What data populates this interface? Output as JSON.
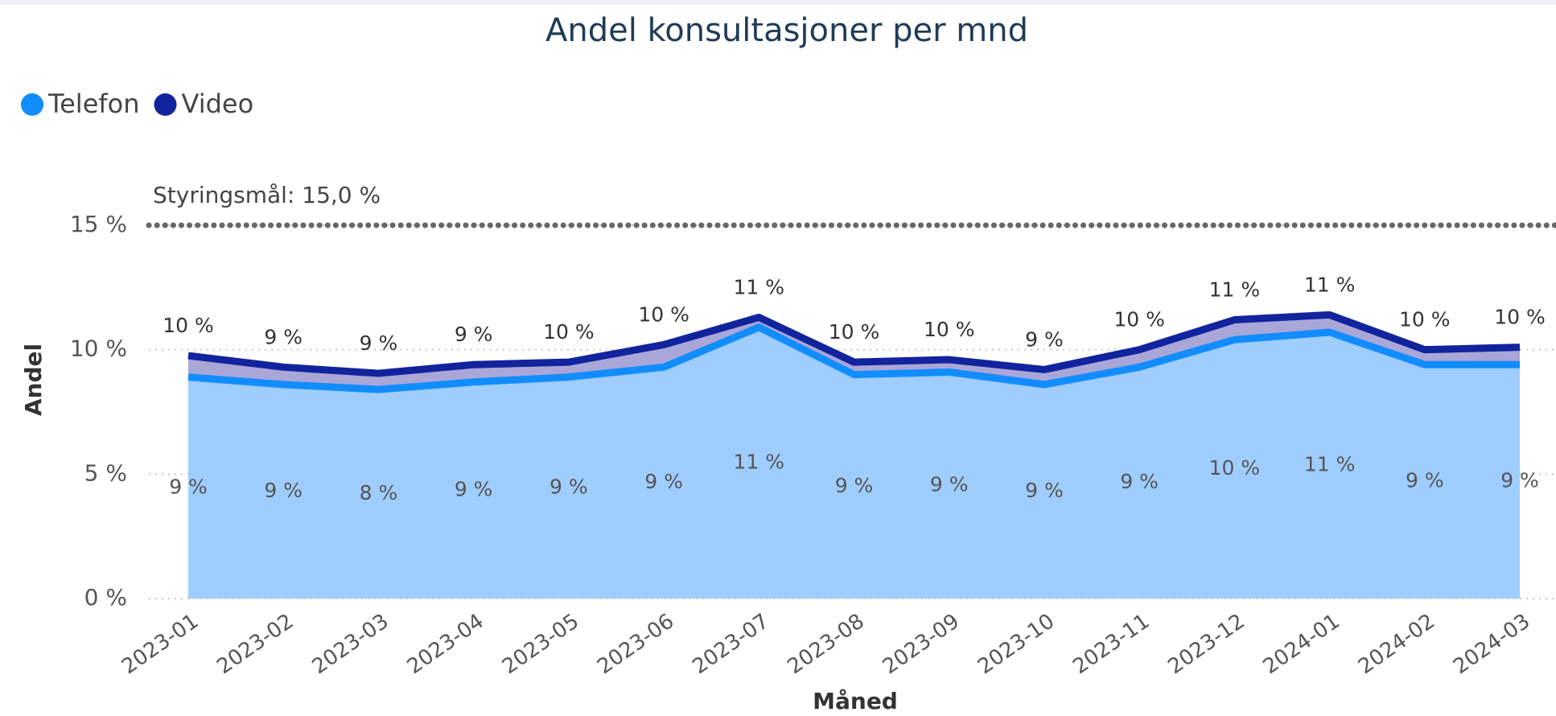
{
  "chart_data": {
    "type": "area",
    "title": "Andel konsultasjoner per mnd",
    "x_label": "Måned",
    "y_label": "Andel",
    "categories": [
      "2023-01",
      "2023-02",
      "2023-03",
      "2023-04",
      "2023-05",
      "2023-06",
      "2023-07",
      "2023-08",
      "2023-09",
      "2023-10",
      "2023-11",
      "2023-12",
      "2024-01",
      "2024-02",
      "2024-03"
    ],
    "series": [
      {
        "name": "Telefon",
        "color": "#118DFF",
        "area_color": "#9fcdfd",
        "values": [
          8.9,
          8.6,
          8.4,
          8.7,
          8.9,
          9.3,
          10.9,
          9.0,
          9.1,
          8.6,
          9.3,
          10.4,
          10.7,
          9.4,
          9.4
        ],
        "value_labels": [
          "9 %",
          "9 %",
          "8 %",
          "9 %",
          "9 %",
          "9 %",
          "11 %",
          "9 %",
          "9 %",
          "9 %",
          "9 %",
          "10 %",
          "11 %",
          "9 %",
          "9 %"
        ]
      },
      {
        "name": "Video",
        "color": "#12239E",
        "area_color": "#a9a6d8",
        "values": [
          9.76,
          9.3,
          9.05,
          9.4,
          9.5,
          10.2,
          11.3,
          9.5,
          9.6,
          9.2,
          10.0,
          11.2,
          11.4,
          10.0,
          10.1
        ],
        "value_labels": [
          "10 %",
          "9 %",
          "9 %",
          "9 %",
          "10 %",
          "10 %",
          "11 %",
          "10 %",
          "10 %",
          "9 %",
          "10 %",
          "11 %",
          "11 %",
          "10 %",
          "10 %"
        ]
      }
    ],
    "ylim": [
      0,
      15
    ],
    "yticks": [
      {
        "value": 0,
        "label": "0 %"
      },
      {
        "value": 5,
        "label": "5 %"
      },
      {
        "value": 10,
        "label": "10 %"
      },
      {
        "value": 15,
        "label": "15 %"
      }
    ],
    "grid": true,
    "legend": "top-left",
    "target": {
      "value": 15,
      "label": "Styringsmål: 15,0 %"
    }
  }
}
